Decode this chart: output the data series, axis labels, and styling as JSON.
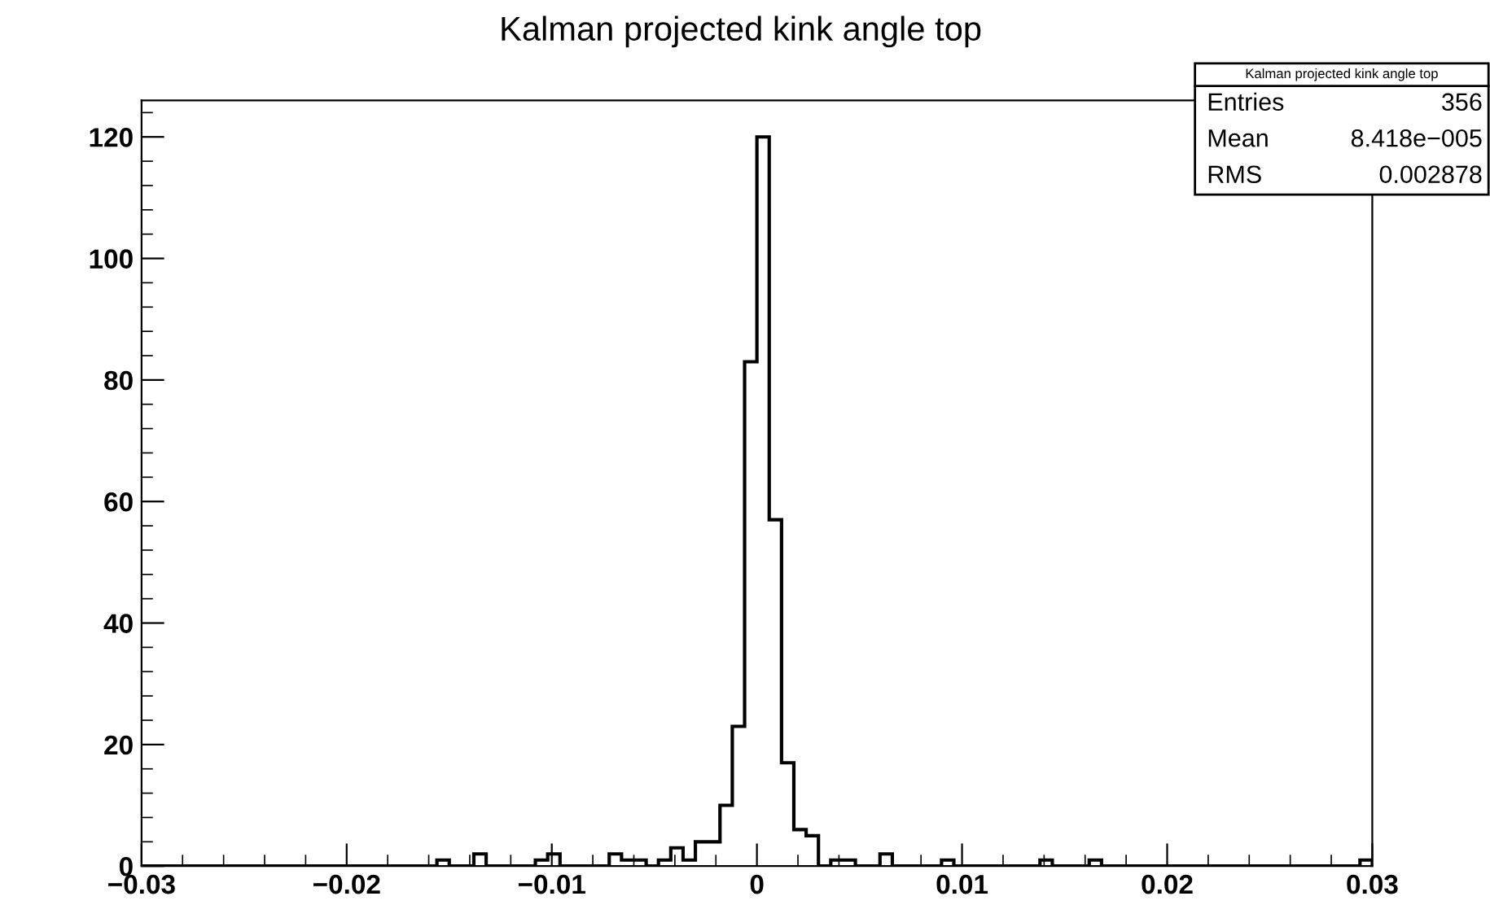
{
  "chart_data": {
    "type": "histogram",
    "title": "Kalman projected kink angle top",
    "bins": [
      -0.03,
      -0.0294,
      -0.0288,
      -0.0282,
      -0.0276,
      -0.027,
      -0.0264,
      -0.0258,
      -0.0252,
      -0.0246,
      -0.024,
      -0.0234,
      -0.0228,
      -0.0222,
      -0.0216,
      -0.021,
      -0.0204,
      -0.0198,
      -0.0192,
      -0.0186,
      -0.018,
      -0.0174,
      -0.0168,
      -0.0162,
      -0.0156,
      -0.015,
      -0.0144,
      -0.0138,
      -0.0132,
      -0.0126,
      -0.012,
      -0.0114,
      -0.0108,
      -0.0102,
      -0.0096,
      -0.009,
      -0.0084,
      -0.0078,
      -0.0072,
      -0.0066,
      -0.006,
      -0.0054,
      -0.0048,
      -0.0042,
      -0.0036,
      -0.003,
      -0.0024,
      -0.0018,
      -0.0012,
      -0.0006,
      0,
      0.0006,
      0.0012,
      0.0018,
      0.0024,
      0.003,
      0.0036,
      0.0042,
      0.0048,
      0.0054,
      0.006,
      0.0066,
      0.0072,
      0.0078,
      0.0084,
      0.009,
      0.0096,
      0.0102,
      0.0108,
      0.0114,
      0.012,
      0.0126,
      0.0132,
      0.0138,
      0.0144,
      0.015,
      0.0156,
      0.0162,
      0.0168,
      0.0174,
      0.018,
      0.0186,
      0.0192,
      0.0198,
      0.0204,
      0.021,
      0.0216,
      0.0222,
      0.0228,
      0.0234,
      0.024,
      0.0246,
      0.0252,
      0.0258,
      0.0264,
      0.027,
      0.0276,
      0.0282,
      0.0288,
      0.0294,
      0.03
    ],
    "values": [
      0,
      0,
      0,
      0,
      0,
      0,
      0,
      0,
      0,
      0,
      0,
      0,
      0,
      0,
      0,
      0,
      0,
      0,
      0,
      0,
      0,
      0,
      0,
      0,
      1,
      0,
      0,
      2,
      0,
      0,
      0,
      0,
      1,
      2,
      0,
      0,
      0,
      0,
      2,
      1,
      1,
      0,
      1,
      3,
      1,
      4,
      4,
      10,
      23,
      83,
      120,
      57,
      17,
      6,
      5,
      0,
      1,
      1,
      0,
      0,
      2,
      0,
      0,
      0,
      0,
      1,
      0,
      0,
      0,
      0,
      0,
      0,
      0,
      1,
      0,
      0,
      0,
      1,
      0,
      0,
      0,
      0,
      0,
      0,
      0,
      0,
      0,
      0,
      0,
      0,
      0,
      0,
      0,
      0,
      0,
      0,
      0,
      0,
      0,
      1
    ],
    "color": "#000000",
    "xlim": [
      -0.03,
      0.03
    ],
    "xticks": [
      {
        "value": -0.03,
        "label": "−0.03"
      },
      {
        "value": -0.02,
        "label": "−0.02"
      },
      {
        "value": -0.01,
        "label": "−0.01"
      },
      0,
      0.01,
      0.02,
      0.03
    ],
    "ylim": [
      0,
      126
    ],
    "yticks": [
      0,
      20,
      40,
      60,
      80,
      100,
      120
    ],
    "grid": false,
    "legend": false,
    "annotations": [
      "Kalman projected kink angle top",
      "Entries",
      "356",
      "Mean",
      "8.418e−005",
      "RMS",
      "0.002878"
    ]
  }
}
